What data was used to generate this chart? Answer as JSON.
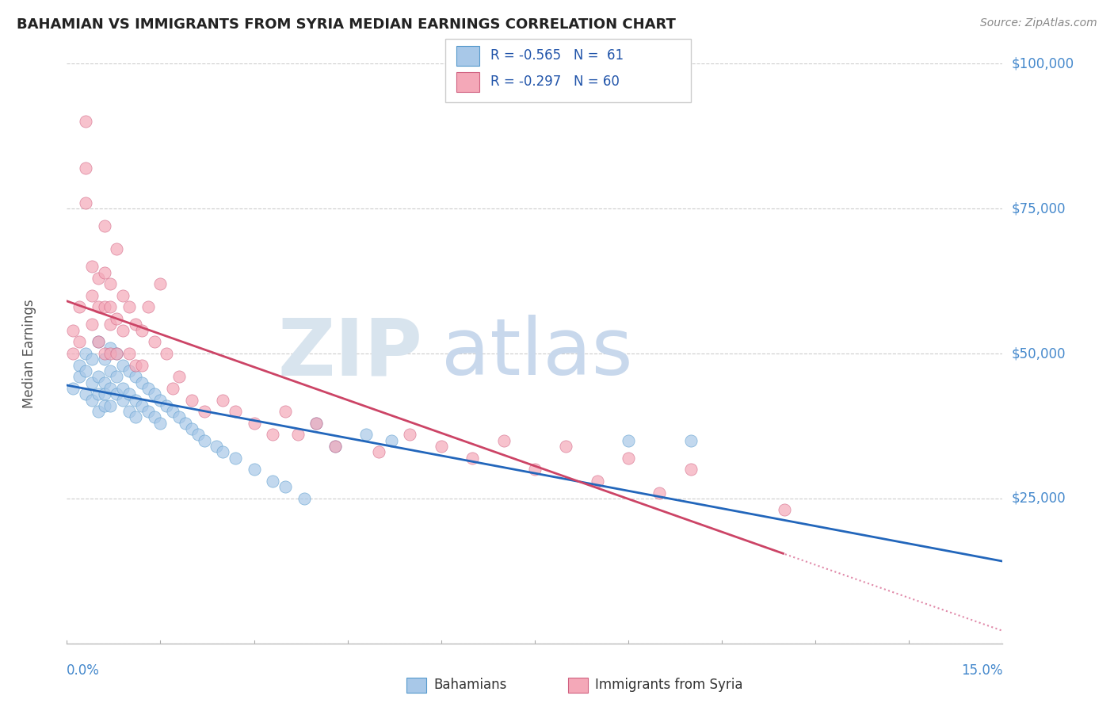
{
  "title": "BAHAMIAN VS IMMIGRANTS FROM SYRIA MEDIAN EARNINGS CORRELATION CHART",
  "source": "Source: ZipAtlas.com",
  "ylabel": "Median Earnings",
  "xmin": 0.0,
  "xmax": 0.15,
  "ymin": 0,
  "ymax": 100000,
  "yticks": [
    0,
    25000,
    50000,
    75000,
    100000
  ],
  "ytick_labels": [
    "",
    "$25,000",
    "$50,000",
    "$75,000",
    "$100,000"
  ],
  "legend_r1": "R = -0.565",
  "legend_n1": "N =  61",
  "legend_r2": "R = -0.297",
  "legend_n2": "N = 60",
  "blue_fill": "#A8C8E8",
  "blue_edge": "#5599CC",
  "pink_fill": "#F4A8B8",
  "pink_edge": "#D06080",
  "line_blue": "#2266BB",
  "line_pink": "#CC4466",
  "line_dash_pink": "#E088A8",
  "label1": "Bahamians",
  "label2": "Immigrants from Syria",
  "blue_scatter_x": [
    0.001,
    0.002,
    0.002,
    0.003,
    0.003,
    0.003,
    0.004,
    0.004,
    0.004,
    0.005,
    0.005,
    0.005,
    0.005,
    0.006,
    0.006,
    0.006,
    0.006,
    0.007,
    0.007,
    0.007,
    0.007,
    0.008,
    0.008,
    0.008,
    0.009,
    0.009,
    0.009,
    0.01,
    0.01,
    0.01,
    0.011,
    0.011,
    0.011,
    0.012,
    0.012,
    0.013,
    0.013,
    0.014,
    0.014,
    0.015,
    0.015,
    0.016,
    0.017,
    0.018,
    0.019,
    0.02,
    0.021,
    0.022,
    0.024,
    0.025,
    0.027,
    0.03,
    0.033,
    0.035,
    0.038,
    0.04,
    0.043,
    0.048,
    0.052,
    0.09,
    0.1
  ],
  "blue_scatter_y": [
    44000,
    48000,
    46000,
    50000,
    43000,
    47000,
    49000,
    45000,
    42000,
    52000,
    46000,
    43000,
    40000,
    49000,
    45000,
    43000,
    41000,
    51000,
    47000,
    44000,
    41000,
    50000,
    46000,
    43000,
    48000,
    44000,
    42000,
    47000,
    43000,
    40000,
    46000,
    42000,
    39000,
    45000,
    41000,
    44000,
    40000,
    43000,
    39000,
    42000,
    38000,
    41000,
    40000,
    39000,
    38000,
    37000,
    36000,
    35000,
    34000,
    33000,
    32000,
    30000,
    28000,
    27000,
    25000,
    38000,
    34000,
    36000,
    35000,
    35000,
    35000
  ],
  "pink_scatter_x": [
    0.001,
    0.001,
    0.002,
    0.002,
    0.003,
    0.003,
    0.003,
    0.004,
    0.004,
    0.004,
    0.005,
    0.005,
    0.005,
    0.006,
    0.006,
    0.006,
    0.006,
    0.007,
    0.007,
    0.007,
    0.007,
    0.008,
    0.008,
    0.008,
    0.009,
    0.009,
    0.01,
    0.01,
    0.011,
    0.011,
    0.012,
    0.012,
    0.013,
    0.014,
    0.015,
    0.016,
    0.017,
    0.018,
    0.02,
    0.022,
    0.025,
    0.027,
    0.03,
    0.033,
    0.035,
    0.037,
    0.04,
    0.043,
    0.05,
    0.055,
    0.06,
    0.065,
    0.07,
    0.075,
    0.08,
    0.085,
    0.09,
    0.095,
    0.1,
    0.115
  ],
  "pink_scatter_y": [
    54000,
    50000,
    58000,
    52000,
    90000,
    82000,
    76000,
    65000,
    60000,
    55000,
    63000,
    58000,
    52000,
    72000,
    64000,
    58000,
    50000,
    62000,
    58000,
    55000,
    50000,
    68000,
    56000,
    50000,
    60000,
    54000,
    58000,
    50000,
    55000,
    48000,
    54000,
    48000,
    58000,
    52000,
    62000,
    50000,
    44000,
    46000,
    42000,
    40000,
    42000,
    40000,
    38000,
    36000,
    40000,
    36000,
    38000,
    34000,
    33000,
    36000,
    34000,
    32000,
    35000,
    30000,
    34000,
    28000,
    32000,
    26000,
    30000,
    23000
  ]
}
